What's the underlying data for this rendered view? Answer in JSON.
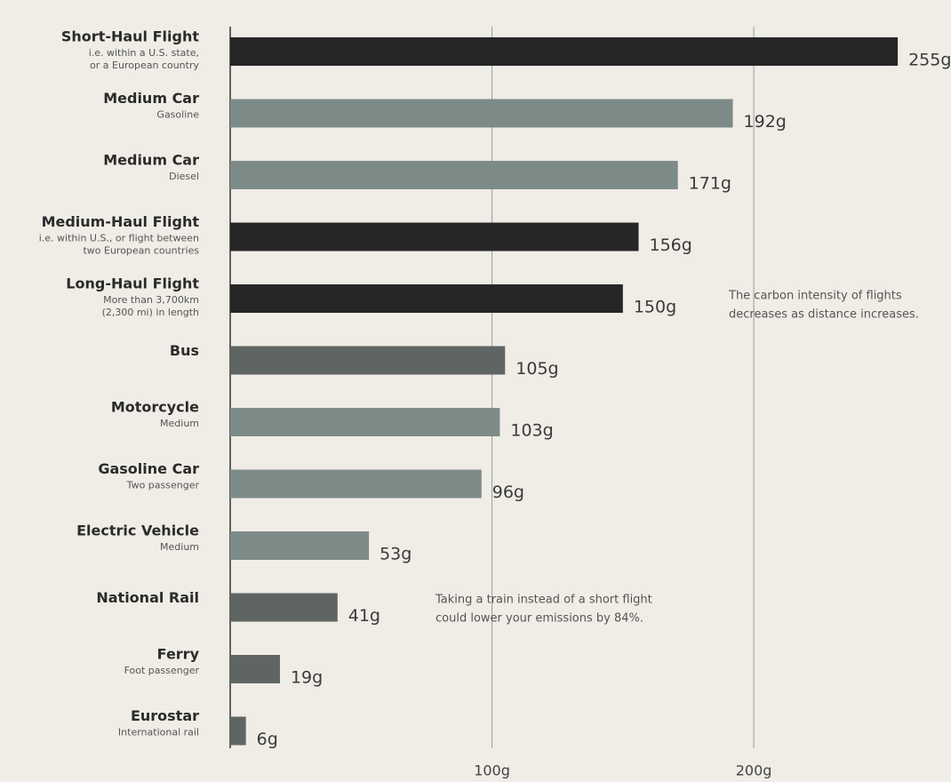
{
  "chart_data": {
    "type": "bar",
    "orientation": "horizontal",
    "categories": [
      "Short-Haul Flight",
      "Medium Car",
      "Medium Car",
      "Medium-Haul Flight",
      "Long-Haul Flight",
      "Bus",
      "Motorcycle",
      "Gasoline Car",
      "Electric Vehicle",
      "National Rail",
      "Ferry",
      "Eurostar"
    ],
    "subtitles": [
      [
        "i.e. within a U.S. state,",
        "or a European country"
      ],
      [
        "Gasoline"
      ],
      [
        "Diesel"
      ],
      [
        "i.e. within U.S., or flight between",
        "two European countries"
      ],
      [
        "More than 3,700km",
        "(2,300 mi) in length"
      ],
      [],
      [
        "Medium"
      ],
      [
        "Two passenger"
      ],
      [
        "Medium"
      ],
      [],
      [
        "Foot passenger"
      ],
      [
        "International rail"
      ]
    ],
    "values": [
      255,
      192,
      171,
      156,
      150,
      105,
      103,
      96,
      53,
      41,
      19,
      6
    ],
    "value_labels": [
      "255g",
      "192g",
      "171g",
      "156g",
      "150g",
      "105g",
      "103g",
      "96g",
      "53g",
      "41g",
      "19g",
      "6g"
    ],
    "colors": [
      "#262626",
      "#7d8b88",
      "#7d8b88",
      "#262626",
      "#262626",
      "#5e6563",
      "#7d8b88",
      "#7d8b88",
      "#7d8b88",
      "#5e6563",
      "#5e6563",
      "#5e6563"
    ],
    "xlim": [
      0,
      275
    ],
    "xticks": [
      {
        "value": 100,
        "label": "100g"
      },
      {
        "value": 200,
        "label": "200g"
      }
    ],
    "grid": true,
    "annotations": [
      [
        "The carbon intensity of flights",
        "decreases as distance increases."
      ],
      [
        "Taking a train instead of a short flight",
        "could lower your emissions by 84%."
      ]
    ]
  }
}
